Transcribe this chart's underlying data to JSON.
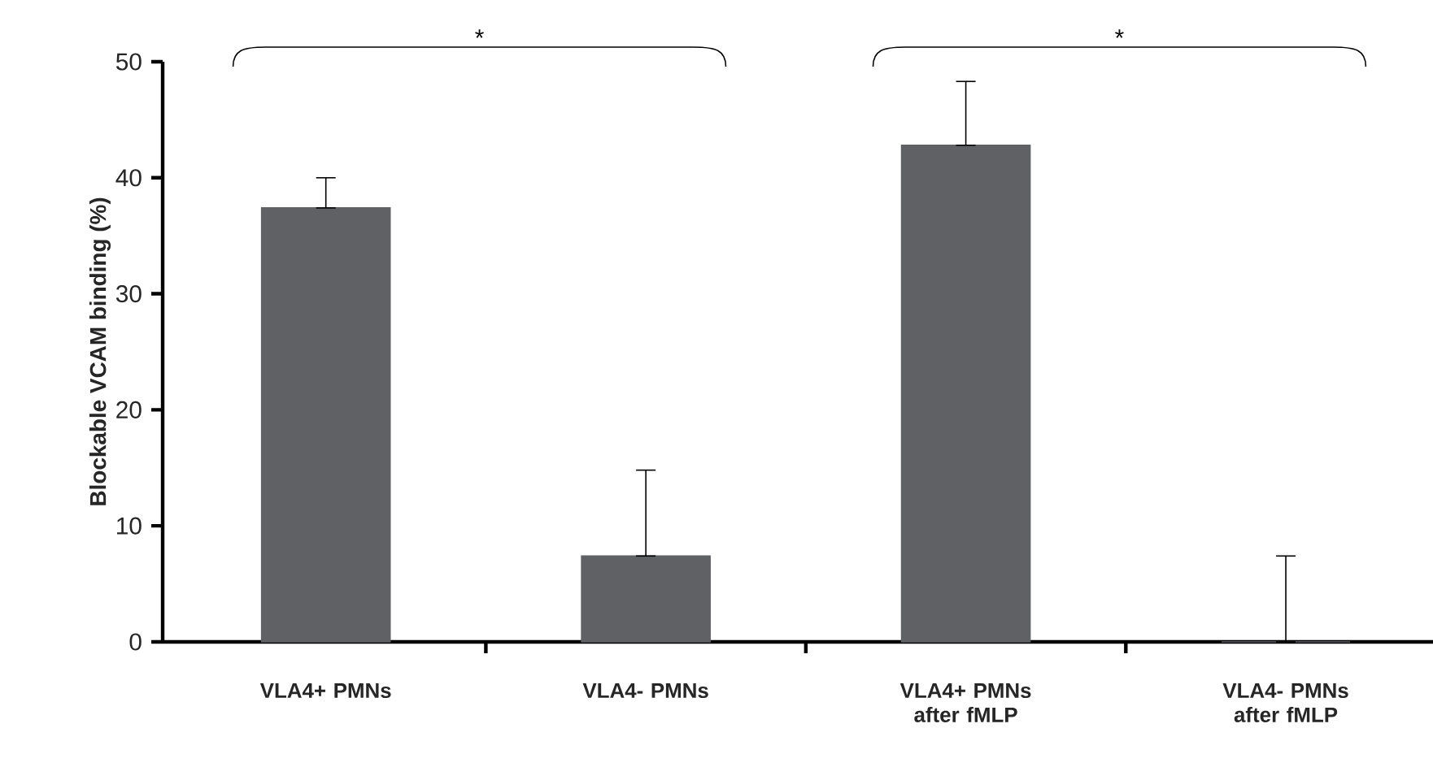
{
  "chart_data": {
    "type": "bar",
    "ylabel": "Blockable VCAM binding (%)",
    "categories": [
      "VLA4+ PMNs",
      "VLA4- PMNs",
      "VLA4+ PMNs after fMLP",
      "VLA4- PMNs after fMLP"
    ],
    "values": [
      37.4,
      7.4,
      42.8,
      0
    ],
    "errors": [
      [
        37.4,
        40.0
      ],
      [
        7.4,
        14.8
      ],
      [
        42.8,
        48.3
      ],
      [
        0,
        7.4
      ]
    ],
    "color": "#5f6165",
    "ylim": [
      0,
      50
    ],
    "yticks": [
      0,
      10,
      20,
      30,
      40,
      50
    ],
    "annotations": [
      "*",
      "*"
    ]
  }
}
